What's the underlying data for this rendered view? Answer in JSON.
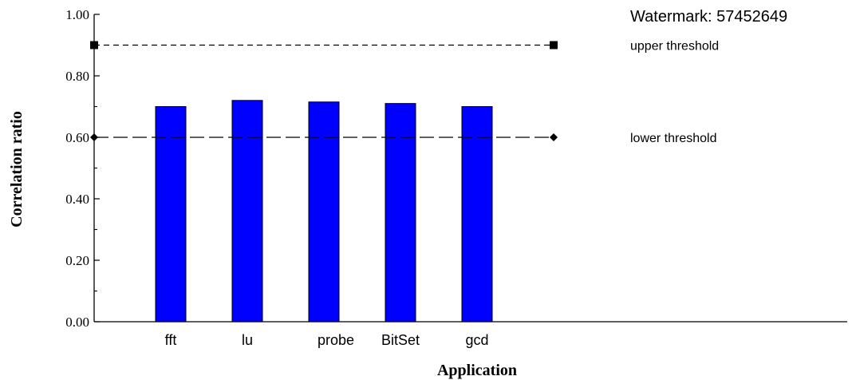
{
  "chart_data": {
    "type": "bar",
    "categories": [
      "fft",
      "lu",
      "probe",
      "BitSet",
      "gcd"
    ],
    "values": [
      0.7,
      0.72,
      0.715,
      0.71,
      0.7
    ],
    "xlabel": "Application",
    "ylabel": "Correlation ratio",
    "ylim": [
      0,
      1.0
    ],
    "yticks": [
      "0.00",
      "0.20",
      "0.40",
      "0.60",
      "0.80",
      "1.00"
    ],
    "bar_color": "#0000ff",
    "grid": false,
    "reference_lines": [
      {
        "label": "upper threshold",
        "value": 0.9,
        "style": "short-dash",
        "marker": "square"
      },
      {
        "label": "lower threshold",
        "value": 0.6,
        "style": "long-dash",
        "marker": "diamond"
      }
    ]
  },
  "watermark": "Watermark: 57452649"
}
